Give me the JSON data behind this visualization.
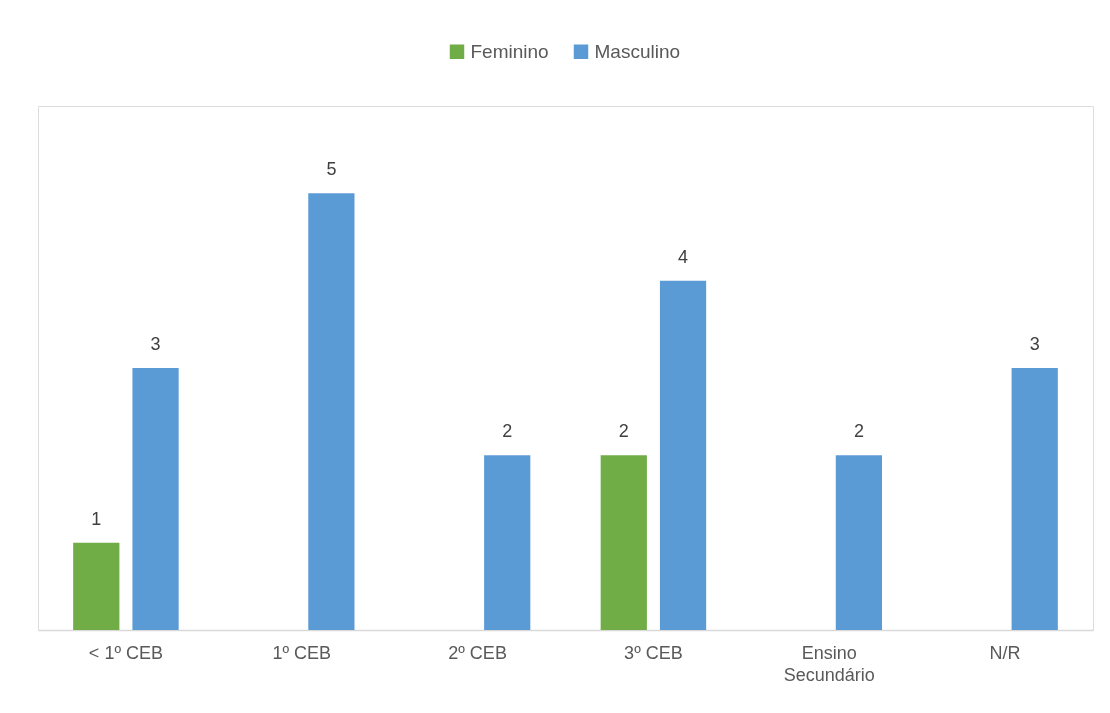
{
  "chart_data": {
    "type": "bar",
    "categories": [
      "< 1º CEB",
      "1º CEB",
      "2º CEB",
      "3º CEB",
      "Ensino Secundário",
      "N/R"
    ],
    "series": [
      {
        "name": "Feminino",
        "color": "#70ad47",
        "values": [
          1,
          null,
          null,
          2,
          null,
          null
        ]
      },
      {
        "name": "Masculino",
        "color": "#5b9bd5",
        "values": [
          3,
          5,
          2,
          4,
          2,
          3
        ]
      }
    ],
    "ylim": [
      0,
      6
    ],
    "data_labels": true,
    "legend": "top",
    "tick_labels": "x"
  }
}
